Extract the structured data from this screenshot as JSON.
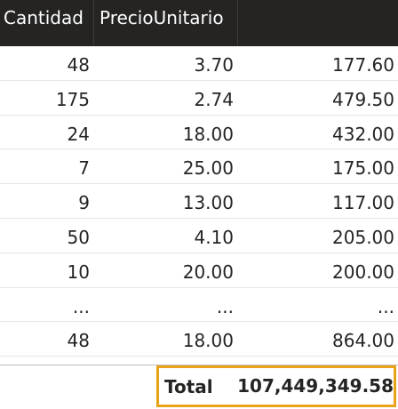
{
  "table": {
    "columns": [
      "Cantidad",
      "PrecioUnitario",
      ""
    ],
    "rows": [
      [
        "48",
        "3.70",
        "177.60"
      ],
      [
        "175",
        "2.74",
        "479.50"
      ],
      [
        "24",
        "18.00",
        "432.00"
      ],
      [
        "7",
        "25.00",
        "175.00"
      ],
      [
        "9",
        "13.00",
        "117.00"
      ],
      [
        "50",
        "4.10",
        "205.00"
      ],
      [
        "10",
        "20.00",
        "200.00"
      ],
      [
        "...",
        "...",
        "..."
      ],
      [
        "48",
        "18.00",
        "864.00"
      ]
    ],
    "total": {
      "label": "Total",
      "value": "107,449,349.58"
    }
  },
  "colors": {
    "header_bg": "#252423",
    "highlight_border": "#e8a317"
  }
}
